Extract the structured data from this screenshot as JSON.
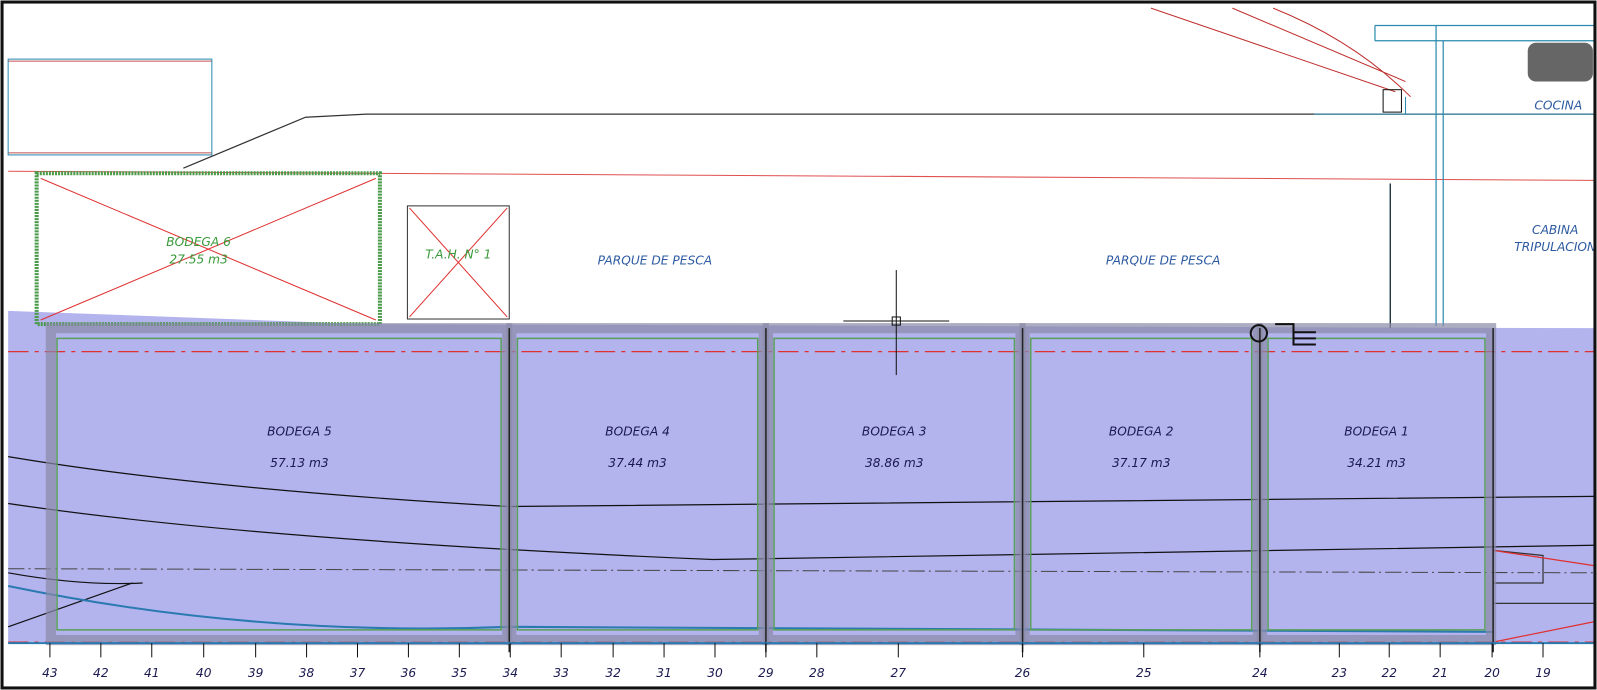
{
  "holds": [
    {
      "name": "BODEGA 5",
      "volume": "57.13 m3"
    },
    {
      "name": "BODEGA 4",
      "volume": "37.44 m3"
    },
    {
      "name": "BODEGA 3",
      "volume": "38.86 m3"
    },
    {
      "name": "BODEGA 2",
      "volume": "37.17 m3"
    },
    {
      "name": "BODEGA 1",
      "volume": "34.21 m3"
    }
  ],
  "upper": {
    "hold6_name": "BODEGA 6",
    "hold6_volume": "27.55 m3",
    "tank": "T.A.H. N° 1",
    "fish_park_1": "PARQUE DE PESCA",
    "fish_park_2": "PARQUE DE PESCA",
    "kitchen": "COCINA",
    "cabin_1": "CABINA",
    "cabin_2": "TRIPULACION"
  },
  "frames": [
    "43",
    "42",
    "41",
    "40",
    "39",
    "38",
    "37",
    "36",
    "35",
    "34",
    "33",
    "32",
    "31",
    "30",
    "29",
    "28",
    "27",
    "26",
    "25",
    "24",
    "23",
    "22",
    "21",
    "20",
    "19"
  ]
}
